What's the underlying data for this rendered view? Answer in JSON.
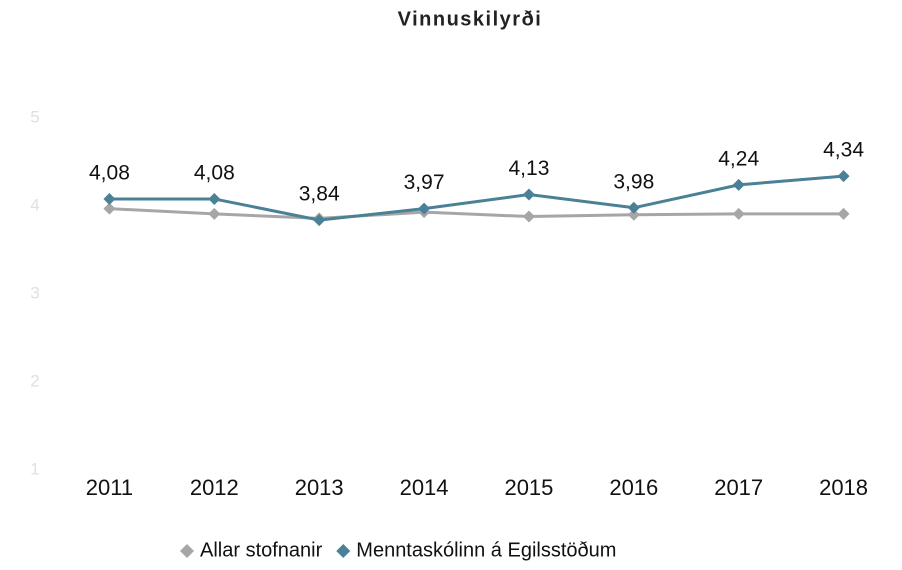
{
  "chart_data": {
    "type": "line",
    "title": "Vinnuskilyrði",
    "categories": [
      "2011",
      "2012",
      "2013",
      "2014",
      "2015",
      "2016",
      "2017",
      "2018"
    ],
    "series": [
      {
        "name": "Allar stofnanir",
        "color": "#a6a6a6",
        "values": [
          3.97,
          3.91,
          3.86,
          3.93,
          3.88,
          3.9,
          3.91,
          3.91
        ]
      },
      {
        "name": "Menntaskólinn á Egilsstöðum",
        "color": "#4a8197",
        "values": [
          4.08,
          4.08,
          3.84,
          3.97,
          4.13,
          3.98,
          4.24,
          4.34
        ],
        "value_labels": [
          "4,08",
          "4,08",
          "3,84",
          "3,97",
          "4,13",
          "3,98",
          "4,24",
          "4,34"
        ]
      }
    ],
    "ylim": [
      1,
      5
    ],
    "yticks": [
      1,
      2,
      3,
      4,
      5
    ],
    "grid": false,
    "legend": "bottom"
  }
}
